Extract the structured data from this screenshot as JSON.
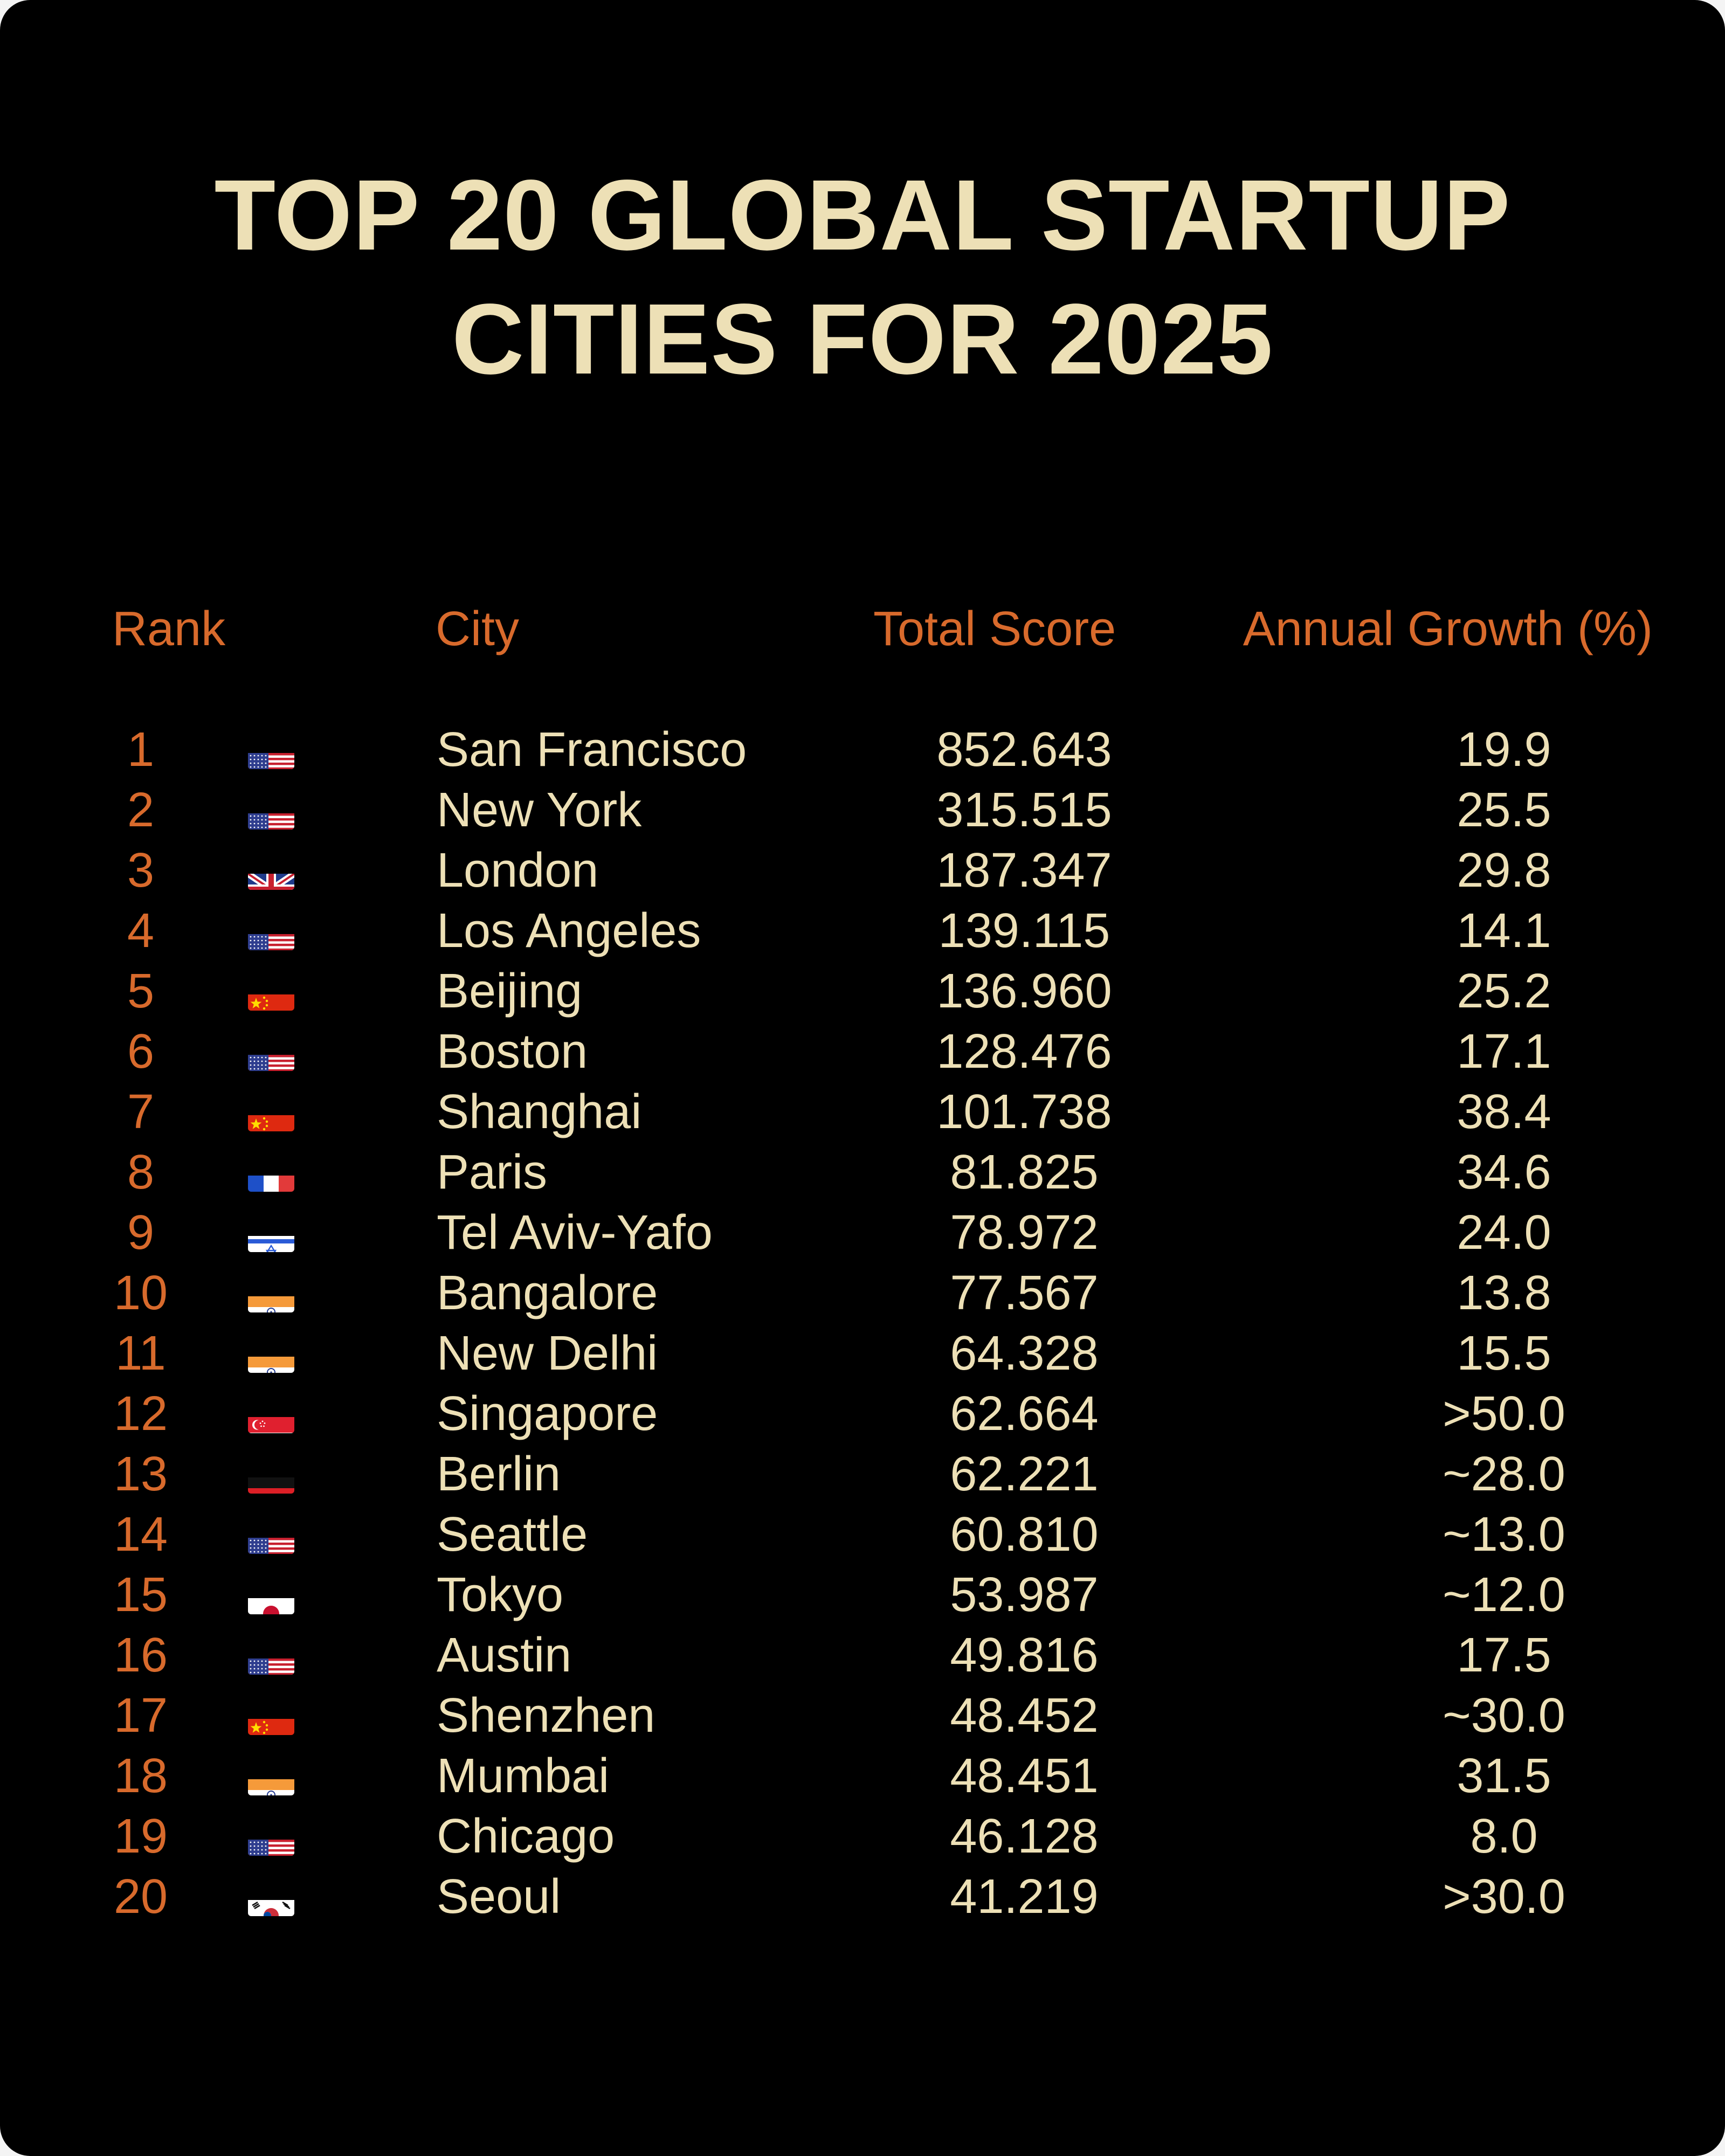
{
  "title_line1": "TOP 20 GLOBAL STARTUP",
  "title_line2": "CITIES FOR 2025",
  "colors": {
    "background": "#000000",
    "title": "#ede0b6",
    "accent": "#d86a2c",
    "text": "#ede0b6"
  },
  "headers": {
    "rank": "Rank",
    "city": "City",
    "score": "Total Score",
    "growth": "Annual Growth (%)"
  },
  "chart_data": {
    "type": "table",
    "title": "TOP 20 GLOBAL STARTUP CITIES FOR 2025",
    "columns": [
      "Rank",
      "City",
      "Total Score",
      "Annual Growth (%)"
    ],
    "rows": [
      {
        "rank": "1",
        "flag": "us-flag-icon",
        "city": "San Francisco",
        "score": "852.643",
        "growth": "19.9"
      },
      {
        "rank": "2",
        "flag": "us-flag-icon",
        "city": "New York",
        "score": "315.515",
        "growth": "25.5"
      },
      {
        "rank": "3",
        "flag": "uk-flag-icon",
        "city": "London",
        "score": "187.347",
        "growth": "29.8"
      },
      {
        "rank": "4",
        "flag": "us-flag-icon",
        "city": "Los Angeles",
        "score": "139.115",
        "growth": "14.1"
      },
      {
        "rank": "5",
        "flag": "cn-flag-icon",
        "city": "Beijing",
        "score": "136.960",
        "growth": "25.2"
      },
      {
        "rank": "6",
        "flag": "us-flag-icon",
        "city": "Boston",
        "score": "128.476",
        "growth": "17.1"
      },
      {
        "rank": "7",
        "flag": "cn-flag-icon",
        "city": "Shanghai",
        "score": "101.738",
        "growth": "38.4"
      },
      {
        "rank": "8",
        "flag": "fr-flag-icon",
        "city": "Paris",
        "score": "81.825",
        "growth": "34.6"
      },
      {
        "rank": "9",
        "flag": "il-flag-icon",
        "city": "Tel Aviv-Yafo",
        "score": "78.972",
        "growth": "24.0"
      },
      {
        "rank": "10",
        "flag": "in-flag-icon",
        "city": "Bangalore",
        "score": "77.567",
        "growth": "13.8"
      },
      {
        "rank": "11",
        "flag": "in-flag-icon",
        "city": "New Delhi",
        "score": "64.328",
        "growth": "15.5"
      },
      {
        "rank": "12",
        "flag": "sg-flag-icon",
        "city": "Singapore",
        "score": "62.664",
        "growth": ">50.0"
      },
      {
        "rank": "13",
        "flag": "de-flag-icon",
        "city": "Berlin",
        "score": "62.221",
        "growth": "~28.0"
      },
      {
        "rank": "14",
        "flag": "us-flag-icon",
        "city": "Seattle",
        "score": "60.810",
        "growth": "~13.0"
      },
      {
        "rank": "15",
        "flag": "jp-flag-icon",
        "city": "Tokyo",
        "score": "53.987",
        "growth": "~12.0"
      },
      {
        "rank": "16",
        "flag": "us-flag-icon",
        "city": "Austin",
        "score": "49.816",
        "growth": "17.5"
      },
      {
        "rank": "17",
        "flag": "cn-flag-icon",
        "city": "Shenzhen",
        "score": "48.452",
        "growth": "~30.0"
      },
      {
        "rank": "18",
        "flag": "in-flag-icon",
        "city": "Mumbai",
        "score": "48.451",
        "growth": "31.5"
      },
      {
        "rank": "19",
        "flag": "us-flag-icon",
        "city": "Chicago",
        "score": "46.128",
        "growth": "8.0"
      },
      {
        "rank": "20",
        "flag": "kr-flag-icon",
        "city": "Seoul",
        "score": "41.219",
        "growth": ">30.0"
      }
    ]
  }
}
